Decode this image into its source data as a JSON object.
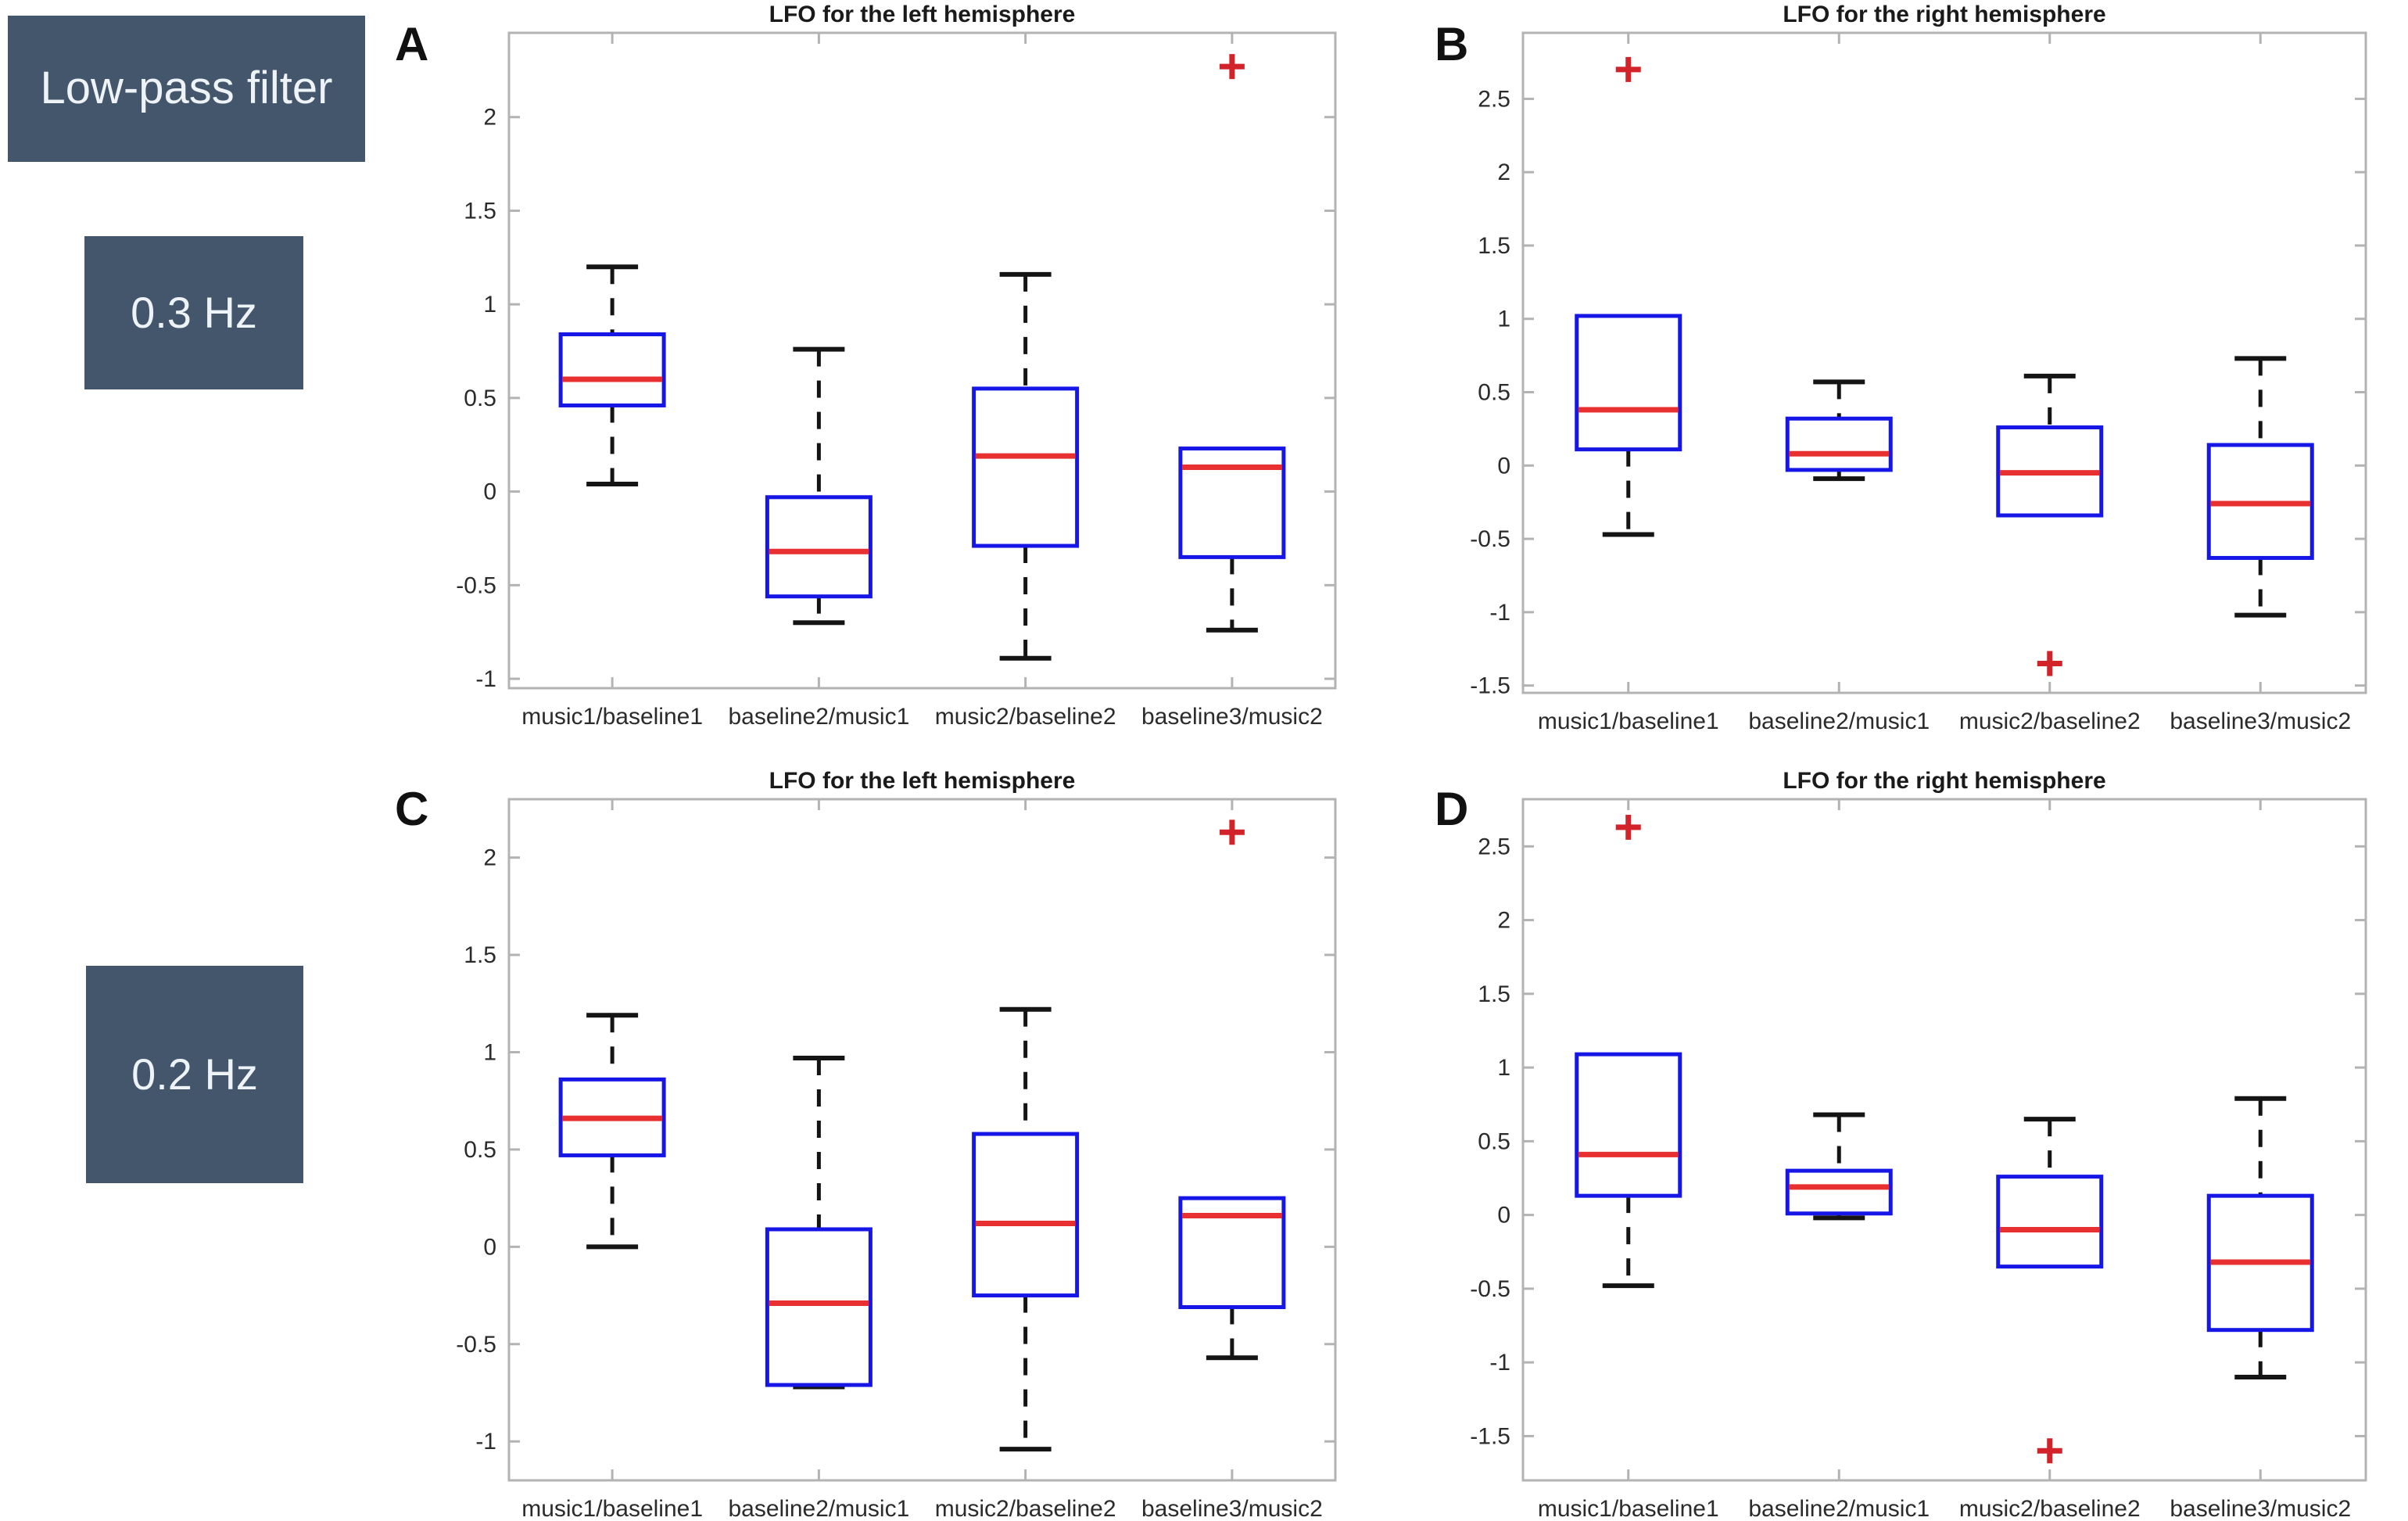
{
  "sidebar": {
    "header_label": "Low-pass filter",
    "filter1_label": "0.3 Hz",
    "filter2_label": "0.2 Hz"
  },
  "colors": {
    "background": "#ffffff",
    "box_edge": "#1616e6",
    "median": "#e83030",
    "whisker": "#141414",
    "whisker_cap": "#141414",
    "outlier": "#d2232a",
    "spine": "#b3b3b3",
    "tick_text": "#2b2b2b",
    "title_text": "#1a1a1a",
    "sidebar_box": "#44566c",
    "sidebar_text": "#eef3f8"
  },
  "chart_data": [
    {
      "panel_letter": "A",
      "type": "box",
      "title": "LFO for the left hemisphere",
      "filter": "0.3 Hz",
      "hemisphere": "left",
      "categories": [
        "music1/baseline1",
        "baseline2/music1",
        "music2/baseline2",
        "baseline3/music2"
      ],
      "ylim": [
        -1.05,
        2.45
      ],
      "yticks": [
        {
          "v": 2,
          "label": "2"
        },
        {
          "v": 1.5,
          "label": "1.5"
        },
        {
          "v": 1,
          "label": "1"
        },
        {
          "v": 0.5,
          "label": "0.5"
        },
        {
          "v": 0,
          "label": "0"
        },
        {
          "v": -0.5,
          "label": "-0.5"
        },
        {
          "v": -1,
          "label": "-1"
        }
      ],
      "boxes": [
        {
          "category": "music1/baseline1",
          "whisker_low": 0.04,
          "q1": 0.46,
          "median": 0.6,
          "q3": 0.84,
          "whisker_high": 1.2,
          "outliers": []
        },
        {
          "category": "baseline2/music1",
          "whisker_low": -0.7,
          "q1": -0.56,
          "median": -0.32,
          "q3": -0.03,
          "whisker_high": 0.76,
          "outliers": []
        },
        {
          "category": "music2/baseline2",
          "whisker_low": -0.89,
          "q1": -0.29,
          "median": 0.19,
          "q3": 0.55,
          "whisker_high": 1.16,
          "outliers": []
        },
        {
          "category": "baseline3/music2",
          "whisker_low": -0.74,
          "q1": -0.35,
          "median": 0.13,
          "q3": 0.23,
          "whisker_high": 0.23,
          "outliers": [
            2.27
          ]
        }
      ]
    },
    {
      "panel_letter": "B",
      "type": "box",
      "title": "LFO for the right hemisphere",
      "filter": "0.3 Hz",
      "hemisphere": "right",
      "categories": [
        "music1/baseline1",
        "baseline2/music1",
        "music2/baseline2",
        "baseline3/music2"
      ],
      "ylim": [
        -1.55,
        2.95
      ],
      "yticks": [
        {
          "v": 2.5,
          "label": "2.5"
        },
        {
          "v": 2,
          "label": "2"
        },
        {
          "v": 1.5,
          "label": "1.5"
        },
        {
          "v": 1,
          "label": "1"
        },
        {
          "v": 0.5,
          "label": "0.5"
        },
        {
          "v": 0,
          "label": "0"
        },
        {
          "v": -0.5,
          "label": "-0.5"
        },
        {
          "v": -1,
          "label": "-1"
        },
        {
          "v": -1.5,
          "label": "-1.5"
        }
      ],
      "boxes": [
        {
          "category": "music1/baseline1",
          "whisker_low": -0.47,
          "q1": 0.11,
          "median": 0.38,
          "q3": 1.02,
          "whisker_high": 1.02,
          "outliers": [
            2.7
          ]
        },
        {
          "category": "baseline2/music1",
          "whisker_low": -0.09,
          "q1": -0.03,
          "median": 0.08,
          "q3": 0.32,
          "whisker_high": 0.57,
          "outliers": []
        },
        {
          "category": "music2/baseline2",
          "whisker_low": -0.34,
          "q1": -0.34,
          "median": -0.05,
          "q3": 0.26,
          "whisker_high": 0.61,
          "outliers": [
            -1.35
          ]
        },
        {
          "category": "baseline3/music2",
          "whisker_low": -1.02,
          "q1": -0.63,
          "median": -0.26,
          "q3": 0.14,
          "whisker_high": 0.73,
          "outliers": []
        }
      ]
    },
    {
      "panel_letter": "C",
      "type": "box",
      "title": "LFO for the left hemisphere",
      "filter": "0.2 Hz",
      "hemisphere": "left",
      "categories": [
        "music1/baseline1",
        "baseline2/music1",
        "music2/baseline2",
        "baseline3/music2"
      ],
      "ylim": [
        -1.2,
        2.3
      ],
      "yticks": [
        {
          "v": 2,
          "label": "2"
        },
        {
          "v": 1.5,
          "label": "1.5"
        },
        {
          "v": 1,
          "label": "1"
        },
        {
          "v": 0.5,
          "label": "0.5"
        },
        {
          "v": 0,
          "label": "0"
        },
        {
          "v": -0.5,
          "label": "-0.5"
        },
        {
          "v": -1,
          "label": "-1"
        }
      ],
      "boxes": [
        {
          "category": "music1/baseline1",
          "whisker_low": 0.0,
          "q1": 0.47,
          "median": 0.66,
          "q3": 0.86,
          "whisker_high": 1.19,
          "outliers": []
        },
        {
          "category": "baseline2/music1",
          "whisker_low": -0.72,
          "q1": -0.71,
          "median": -0.29,
          "q3": 0.09,
          "whisker_high": 0.97,
          "outliers": []
        },
        {
          "category": "music2/baseline2",
          "whisker_low": -1.04,
          "q1": -0.25,
          "median": 0.12,
          "q3": 0.58,
          "whisker_high": 1.22,
          "outliers": []
        },
        {
          "category": "baseline3/music2",
          "whisker_low": -0.57,
          "q1": -0.31,
          "median": 0.16,
          "q3": 0.25,
          "whisker_high": 0.25,
          "outliers": [
            2.13
          ]
        }
      ]
    },
    {
      "panel_letter": "D",
      "type": "box",
      "title": "LFO for the right hemisphere",
      "filter": "0.2 Hz",
      "hemisphere": "right",
      "categories": [
        "music1/baseline1",
        "baseline2/music1",
        "music2/baseline2",
        "baseline3/music2"
      ],
      "ylim": [
        -1.8,
        2.82
      ],
      "yticks": [
        {
          "v": 2.5,
          "label": "2.5"
        },
        {
          "v": 2,
          "label": "2"
        },
        {
          "v": 1.5,
          "label": "1.5"
        },
        {
          "v": 1,
          "label": "1"
        },
        {
          "v": 0.5,
          "label": "0.5"
        },
        {
          "v": 0,
          "label": "0"
        },
        {
          "v": -0.5,
          "label": "-0.5"
        },
        {
          "v": -1,
          "label": "-1"
        },
        {
          "v": -1.5,
          "label": "-1.5"
        }
      ],
      "boxes": [
        {
          "category": "music1/baseline1",
          "whisker_low": -0.48,
          "q1": 0.13,
          "median": 0.41,
          "q3": 1.09,
          "whisker_high": 1.09,
          "outliers": [
            2.63
          ]
        },
        {
          "category": "baseline2/music1",
          "whisker_low": -0.02,
          "q1": 0.01,
          "median": 0.19,
          "q3": 0.3,
          "whisker_high": 0.68,
          "outliers": []
        },
        {
          "category": "music2/baseline2",
          "whisker_low": -0.35,
          "q1": -0.35,
          "median": -0.1,
          "q3": 0.26,
          "whisker_high": 0.65,
          "outliers": [
            -1.6
          ]
        },
        {
          "category": "baseline3/music2",
          "whisker_low": -1.1,
          "q1": -0.78,
          "median": -0.32,
          "q3": 0.13,
          "whisker_high": 0.79,
          "outliers": []
        }
      ]
    }
  ]
}
